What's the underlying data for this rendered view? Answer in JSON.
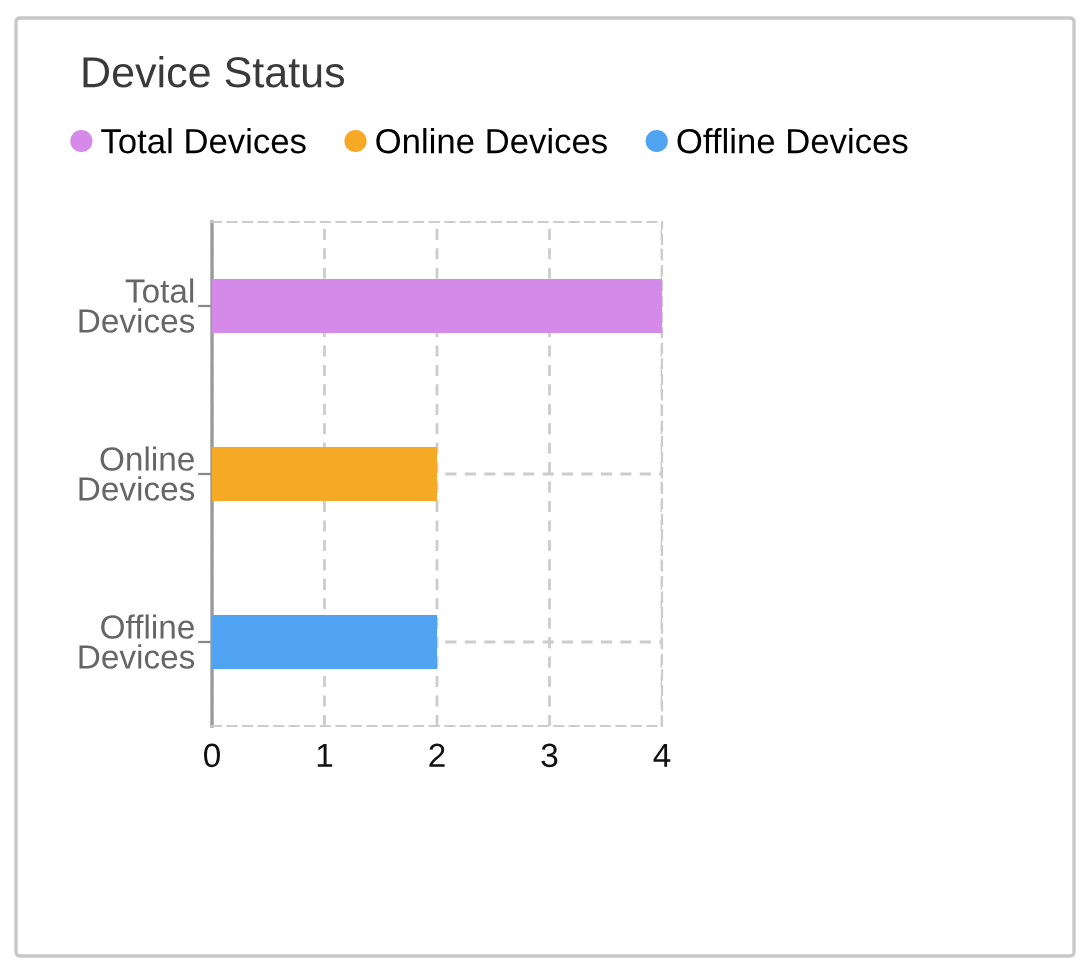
{
  "chart_data": {
    "type": "bar",
    "title": "Device Status",
    "orientation": "horizontal",
    "stacked": true,
    "categories": [
      "Total Devices",
      "Online Devices",
      "Offline Devices"
    ],
    "series": [
      {
        "name": "Total Devices",
        "color": "#d58ae9",
        "values": [
          4,
          null,
          null
        ]
      },
      {
        "name": "Online Devices",
        "color": "#f6a924",
        "values": [
          null,
          2,
          null
        ]
      },
      {
        "name": "Offline Devices",
        "color": "#50a3f0",
        "values": [
          null,
          null,
          2
        ]
      }
    ],
    "xlim": [
      0,
      4
    ],
    "xticks": [
      0,
      1,
      2,
      3,
      4
    ],
    "grid": true,
    "legend": "top"
  }
}
